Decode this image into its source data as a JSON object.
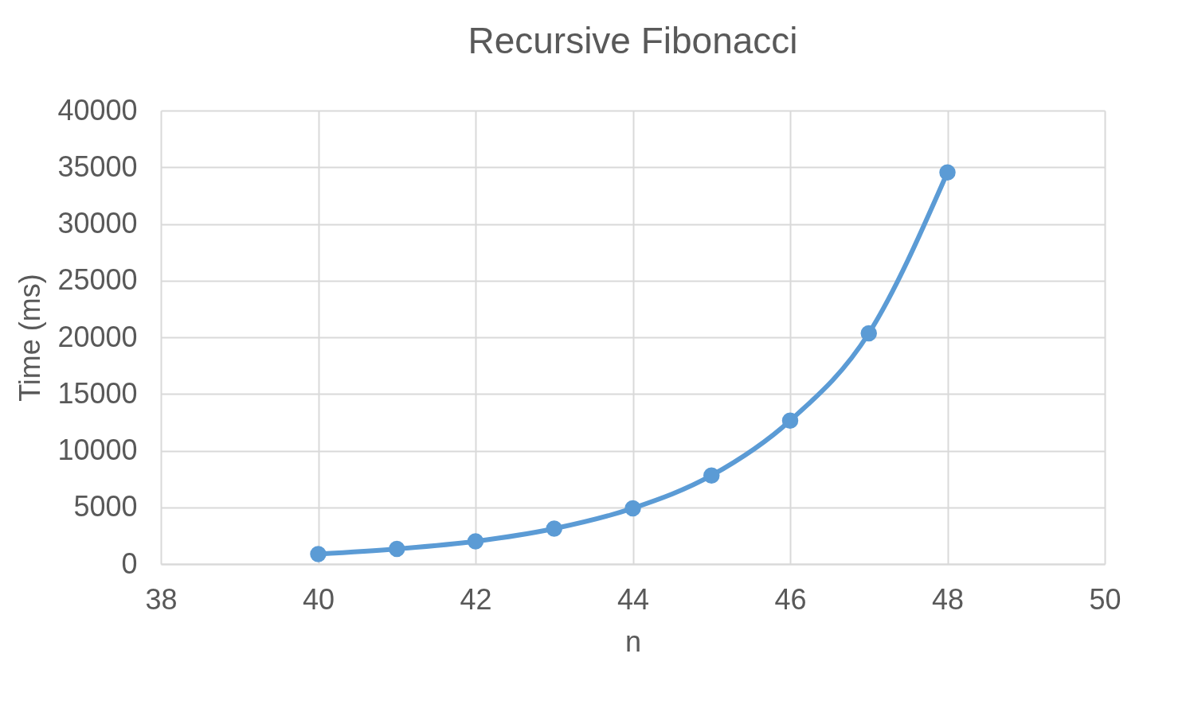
{
  "chart_data": {
    "type": "line",
    "title": "Recursive Fibonacci",
    "xlabel": "n",
    "ylabel": "Time (ms)",
    "x": [
      40,
      41,
      42,
      43,
      44,
      45,
      46,
      47,
      48
    ],
    "series": [
      {
        "color": "#5b9bd5",
        "values": [
          870,
          1330,
          2000,
          3120,
          4920,
          7810,
          12650,
          20350,
          34550
        ]
      }
    ],
    "xlim": [
      38,
      50
    ],
    "xticks": [
      38,
      40,
      42,
      44,
      46,
      48,
      50
    ],
    "ylim": [
      0,
      40000
    ],
    "yticks": [
      0,
      5000,
      10000,
      15000,
      20000,
      25000,
      30000,
      35000,
      40000
    ],
    "grid": true,
    "marker": "circle",
    "line_style": "solid"
  }
}
